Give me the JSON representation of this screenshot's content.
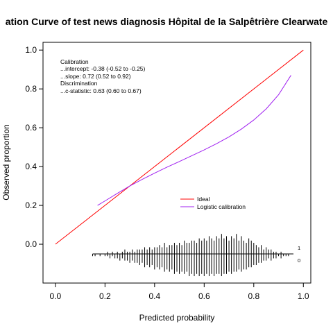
{
  "chart_data": {
    "type": "line",
    "title": "ation Curve of test news diagnosis Hôpital de la Salpêtrière Clearwate",
    "xlabel": "Predicted probability",
    "ylabel": "Observed proportion",
    "xlim": [
      -0.05,
      1.03
    ],
    "ylim": [
      -0.2,
      1.04
    ],
    "x_ticks": [
      "0.0",
      "0.2",
      "0.4",
      "0.6",
      "0.8",
      "1.0"
    ],
    "y_ticks": [
      "0.0",
      "0.2",
      "0.4",
      "0.6",
      "0.8",
      "1.0"
    ],
    "grid": false,
    "stats": [
      "Calibration",
      "...intercept: -0.38 (-0.52 to -0.25)",
      "...slope: 0.72 (0.52 to 0.92)",
      "Discrimination",
      "...c-statistic: 0.63 (0.60 to 0.67)"
    ],
    "legend": {
      "placement": "center-right"
    },
    "series": [
      {
        "name": "Ideal",
        "color": "#ff0000",
        "x": [
          0.0,
          1.0
        ],
        "y": [
          0.0,
          1.0
        ]
      },
      {
        "name": "Logistic calibration",
        "color": "#a020f0",
        "x": [
          0.17,
          0.2,
          0.25,
          0.3,
          0.35,
          0.4,
          0.45,
          0.5,
          0.55,
          0.6,
          0.65,
          0.7,
          0.75,
          0.8,
          0.85,
          0.9,
          0.95
        ],
        "y": [
          0.2,
          0.223,
          0.262,
          0.3,
          0.334,
          0.366,
          0.397,
          0.426,
          0.456,
          0.486,
          0.518,
          0.553,
          0.593,
          0.64,
          0.697,
          0.77,
          0.87
        ]
      }
    ],
    "distribution": {
      "labels": [
        "1",
        "0"
      ],
      "x_min": 0.15,
      "x_max": 0.96,
      "bins": [
        0.15,
        0.16,
        0.17,
        0.18,
        0.19,
        0.2,
        0.21,
        0.22,
        0.23,
        0.24,
        0.25,
        0.26,
        0.27,
        0.28,
        0.29,
        0.3,
        0.31,
        0.32,
        0.33,
        0.34,
        0.35,
        0.36,
        0.37,
        0.38,
        0.39,
        0.4,
        0.41,
        0.42,
        0.43,
        0.44,
        0.45,
        0.46,
        0.47,
        0.48,
        0.49,
        0.5,
        0.51,
        0.52,
        0.53,
        0.54,
        0.55,
        0.56,
        0.57,
        0.58,
        0.59,
        0.6,
        0.61,
        0.62,
        0.63,
        0.64,
        0.65,
        0.66,
        0.67,
        0.68,
        0.69,
        0.7,
        0.71,
        0.72,
        0.73,
        0.74,
        0.75,
        0.76,
        0.77,
        0.78,
        0.79,
        0.8,
        0.81,
        0.82,
        0.83,
        0.84,
        0.85,
        0.86,
        0.87,
        0.88,
        0.89,
        0.9,
        0.91,
        0.92,
        0.93,
        0.94,
        0.95
      ],
      "events": [
        0,
        0,
        0,
        0,
        0,
        0,
        1,
        0,
        1,
        0,
        1,
        0,
        1,
        2,
        1,
        1,
        2,
        1,
        2,
        2,
        2,
        3,
        2,
        3,
        2,
        3,
        3,
        4,
        3,
        5,
        3,
        4,
        4,
        5,
        4,
        5,
        4,
        6,
        5,
        5,
        6,
        6,
        5,
        7,
        6,
        7,
        6,
        8,
        7,
        6,
        8,
        7,
        9,
        7,
        8,
        6,
        8,
        7,
        9,
        6,
        8,
        6,
        5,
        7,
        6,
        5,
        4,
        3,
        4,
        2,
        3,
        2,
        2,
        1,
        1,
        0,
        1,
        0,
        0,
        0,
        0
      ],
      "non_events": [
        1,
        1,
        0,
        1,
        0,
        1,
        1,
        2,
        1,
        2,
        2,
        3,
        2,
        3,
        3,
        4,
        3,
        4,
        4,
        5,
        4,
        6,
        5,
        6,
        5,
        7,
        6,
        7,
        6,
        8,
        7,
        8,
        7,
        9,
        8,
        9,
        8,
        9,
        8,
        10,
        9,
        10,
        9,
        10,
        9,
        10,
        9,
        10,
        9,
        10,
        9,
        9,
        10,
        9,
        9,
        8,
        9,
        8,
        8,
        7,
        8,
        7,
        7,
        6,
        6,
        5,
        5,
        4,
        4,
        3,
        3,
        2,
        3,
        2,
        2,
        1,
        2,
        1,
        1,
        1,
        0
      ]
    }
  }
}
